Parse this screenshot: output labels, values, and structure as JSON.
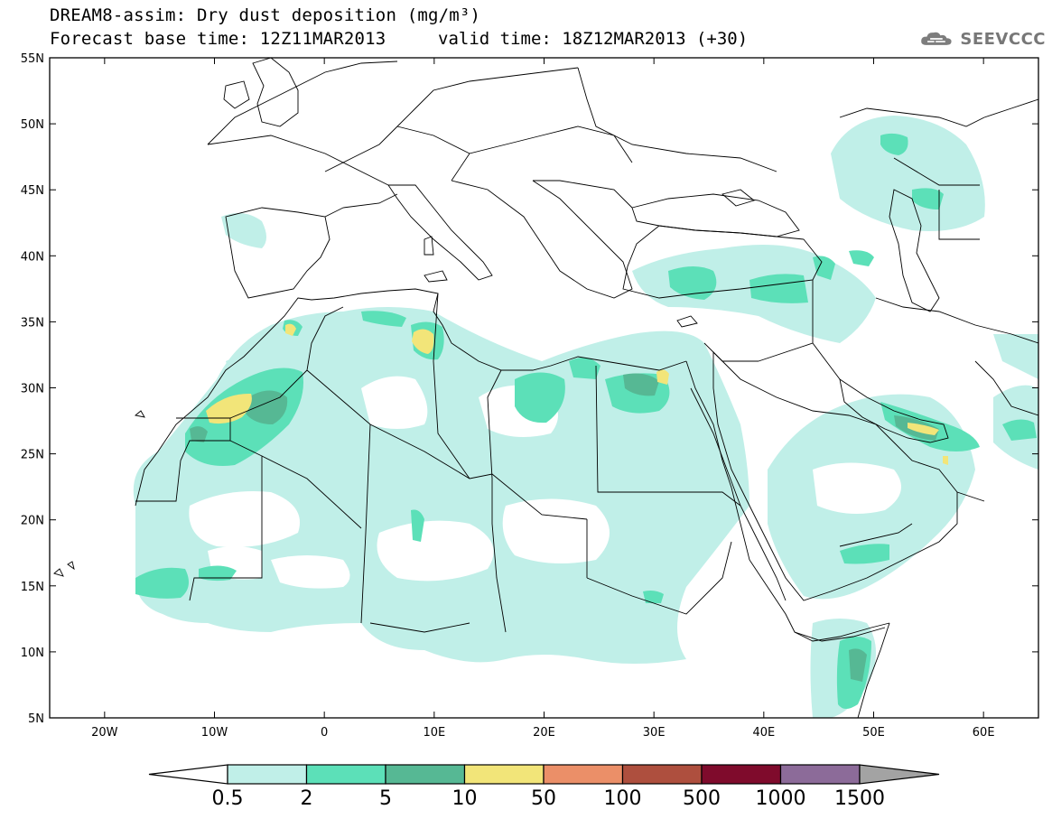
{
  "header": {
    "title": "DREAM8-assim: Dry dust deposition (mg/m³)",
    "base_time": "Forecast base time: 12Z11MAR2013",
    "valid_time": "valid time: 18Z12MAR2013 (+30)"
  },
  "logo": {
    "text": "SEEVCCC",
    "icon": "cloud-logo-icon"
  },
  "map": {
    "lat_labels": [
      "55N",
      "50N",
      "45N",
      "40N",
      "35N",
      "30N",
      "25N",
      "20N",
      "15N",
      "10N",
      "5N"
    ],
    "lon_labels": [
      "20W",
      "10W",
      "0",
      "10E",
      "20E",
      "30E",
      "40E",
      "50E",
      "60E"
    ],
    "extent": {
      "lon_min": -25,
      "lon_max": 65,
      "lat_min": 5,
      "lat_max": 55
    },
    "projection": "equirectangular lat-lon"
  },
  "colorbar": {
    "labels": [
      "0.5",
      "2",
      "5",
      "10",
      "50",
      "100",
      "500",
      "1000",
      "1500"
    ],
    "colors": [
      "#c0efe8",
      "#5ce0b8",
      "#56b894",
      "#f2e579",
      "#eb8f68",
      "#ae4f3e",
      "#7f0b2c",
      "#8c6b99"
    ],
    "under_color": "#ffffff",
    "over_color": "#a3a3a3"
  },
  "dust_colors": {
    "light": "#c0efe8",
    "medium": "#5ce0b8",
    "dark": "#56b894",
    "yellow": "#f2e579"
  }
}
